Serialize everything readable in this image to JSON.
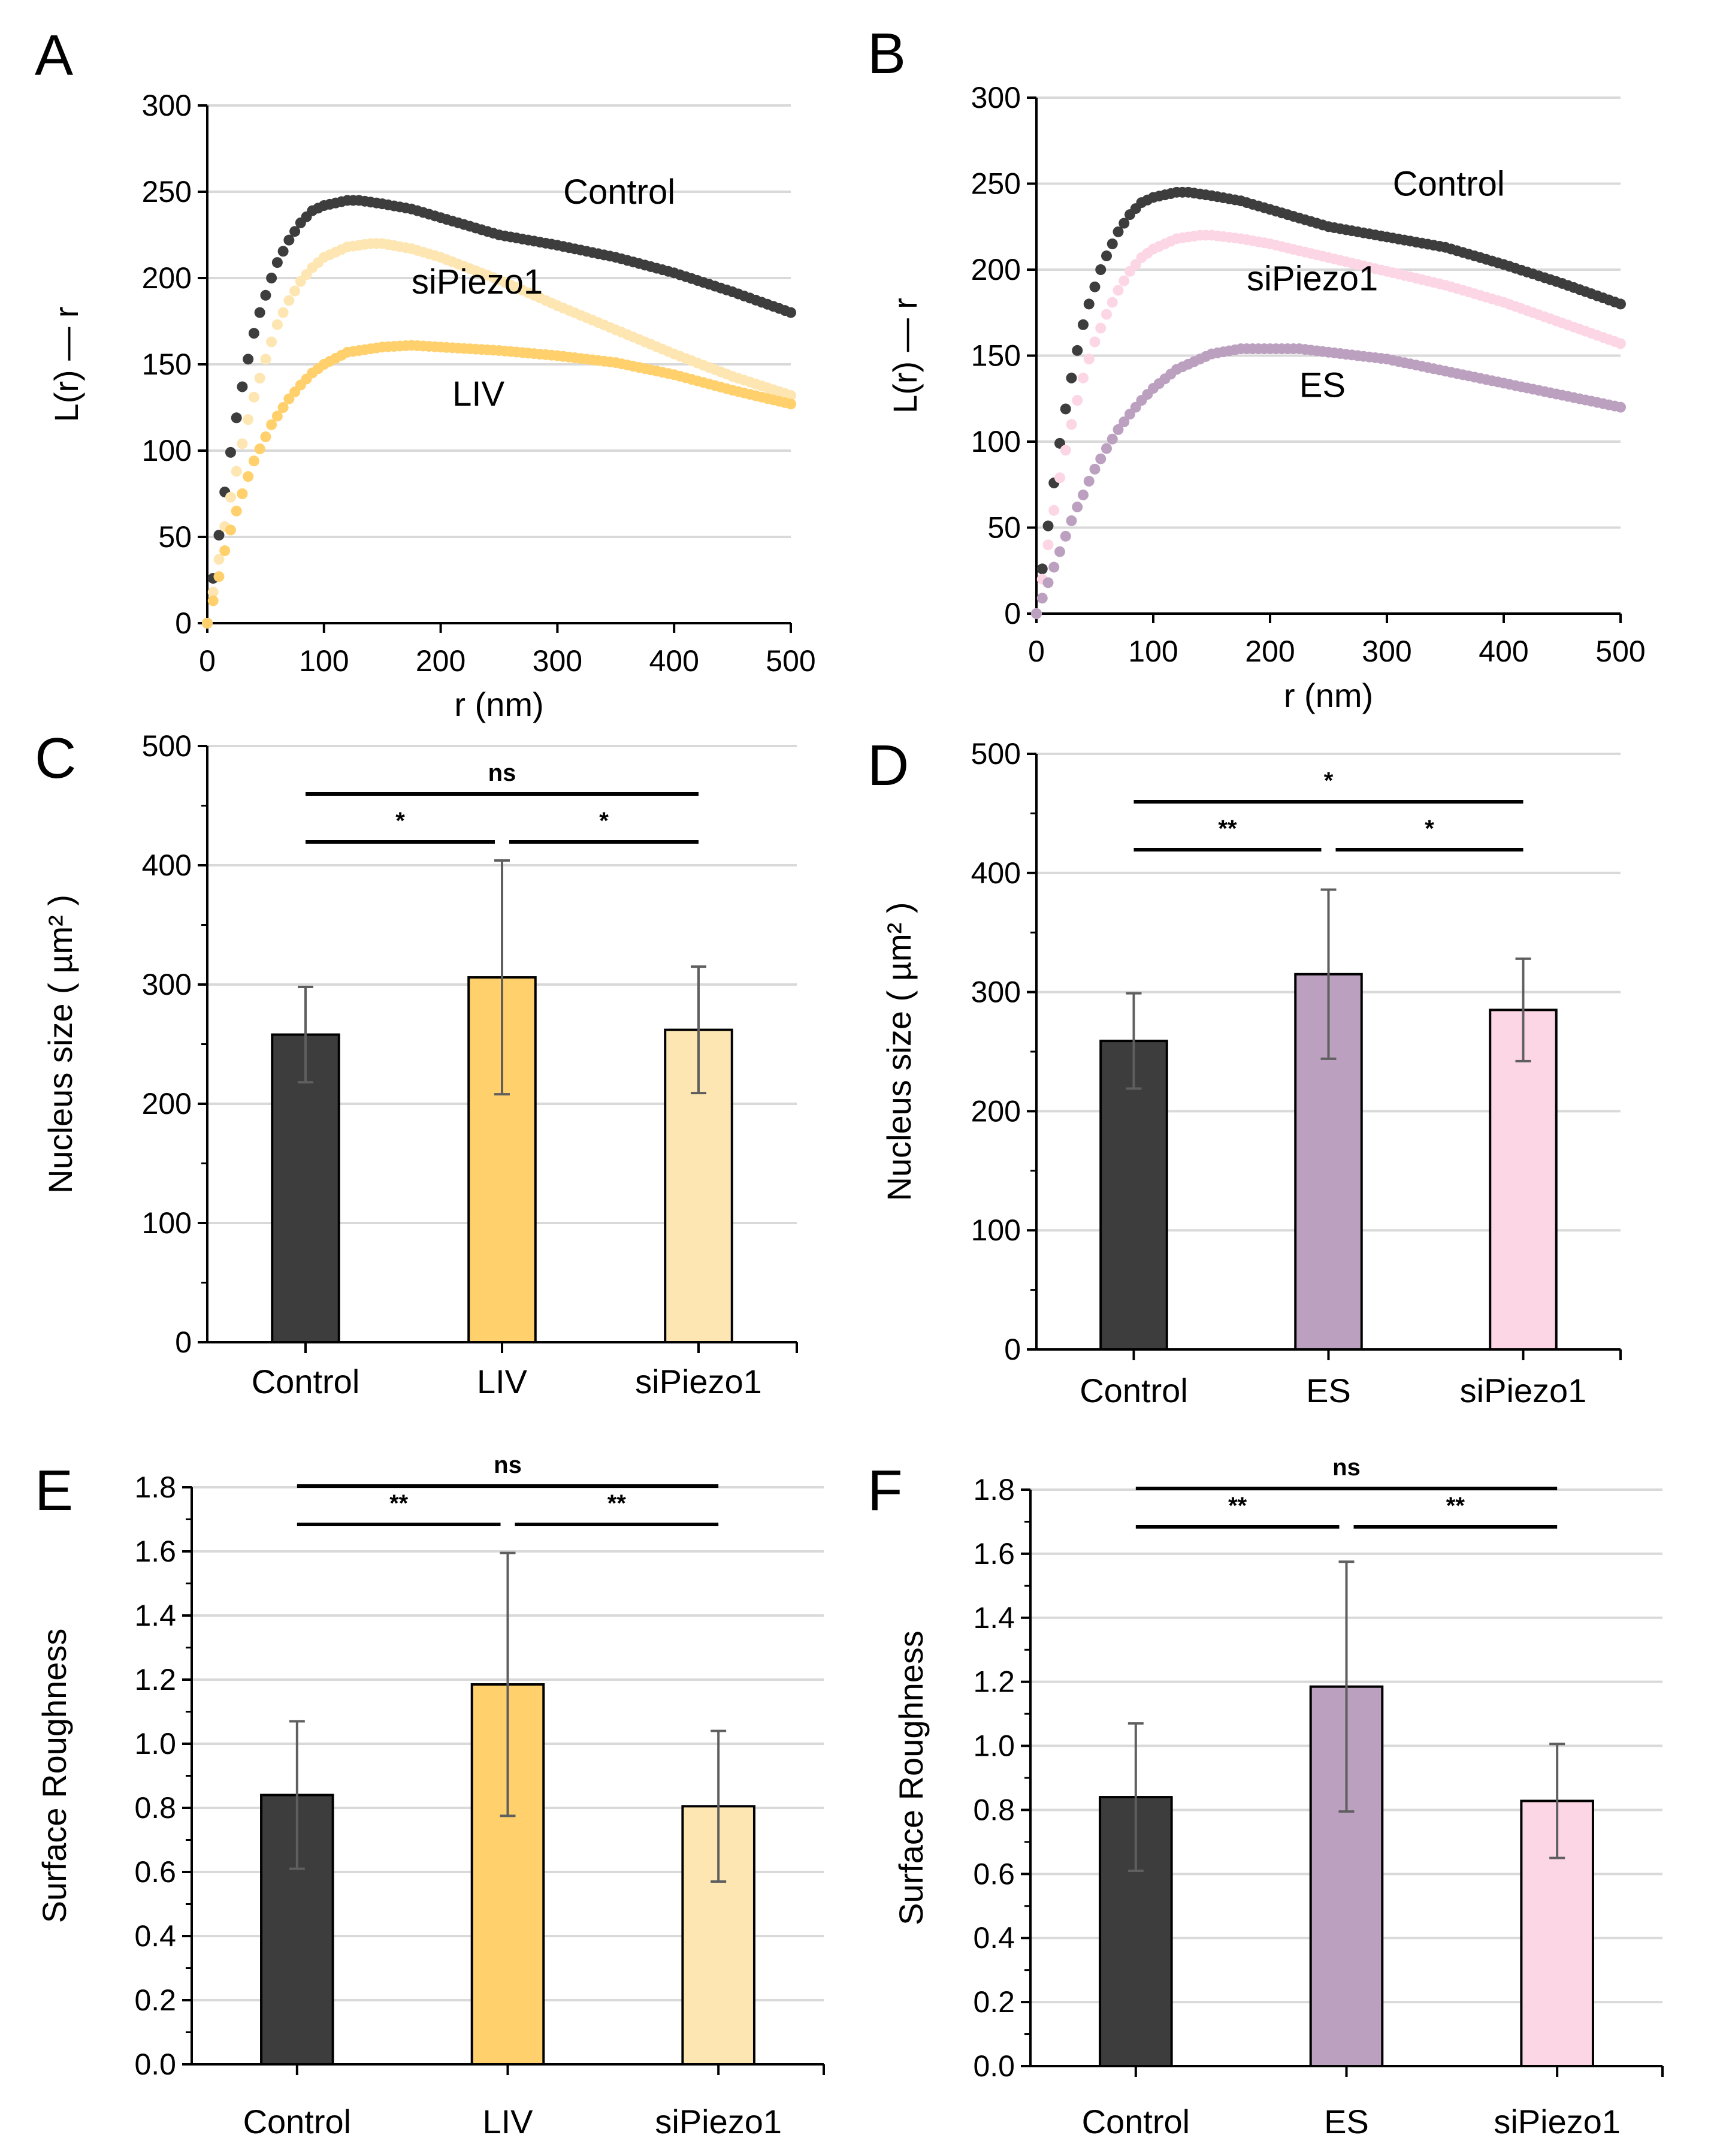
{
  "figure": {
    "panels": [
      "A",
      "B",
      "C",
      "D",
      "E",
      "F"
    ]
  },
  "colors": {
    "control": "#3d3d3d",
    "liv": "#ffd06b",
    "sipiezo1_liv": "#fee6b3",
    "es": "#bba0bf",
    "sipiezo1_es": "#fdd6e5",
    "gridline": "#d9d9d9",
    "errorbar": "#5f5f5f"
  },
  "chart_data": [
    {
      "panel": "A",
      "type": "scatter",
      "title": "",
      "xlabel": "r (nm)",
      "ylabel": "L(r) — r",
      "xlim": [
        0,
        500
      ],
      "ylim": [
        0,
        300
      ],
      "xticks": [
        "0",
        "100",
        "200",
        "300",
        "400",
        "500"
      ],
      "yticks": [
        "0",
        "50",
        "100",
        "150",
        "200",
        "250",
        "300"
      ],
      "grid": true,
      "series": [
        {
          "name": "Control",
          "color_key": "control",
          "x": [
            0,
            5,
            10,
            15,
            20,
            25,
            30,
            35,
            40,
            45,
            50,
            55,
            60,
            70,
            80,
            90,
            100,
            120,
            130,
            150,
            175,
            200,
            250,
            300,
            350,
            400,
            450,
            500
          ],
          "y": [
            0,
            26,
            51,
            76,
            99,
            119,
            137,
            153,
            168,
            180,
            190,
            200,
            209,
            222,
            232,
            239,
            242,
            245,
            245,
            243,
            240,
            235,
            225,
            219,
            212,
            203,
            192,
            180
          ]
        },
        {
          "name": "siPiezo1",
          "color_key": "sipiezo1_liv",
          "x": [
            0,
            5,
            10,
            15,
            20,
            25,
            30,
            35,
            40,
            45,
            50,
            55,
            60,
            70,
            80,
            90,
            100,
            120,
            140,
            150,
            175,
            200,
            250,
            300,
            350,
            400,
            450,
            500
          ],
          "y": [
            0,
            18,
            37,
            56,
            73,
            88,
            104,
            118,
            131,
            142,
            153,
            163,
            173,
            187,
            198,
            206,
            212,
            218,
            220,
            220,
            217,
            212,
            199,
            184,
            170,
            156,
            143,
            132
          ]
        },
        {
          "name": "LIV",
          "color_key": "liv",
          "x": [
            0,
            5,
            10,
            15,
            20,
            25,
            30,
            35,
            40,
            45,
            50,
            55,
            60,
            70,
            80,
            90,
            100,
            120,
            150,
            175,
            200,
            250,
            300,
            350,
            400,
            450,
            500
          ],
          "y": [
            0,
            13,
            27,
            42,
            54,
            65,
            75,
            85,
            94,
            101,
            108,
            115,
            120,
            130,
            138,
            145,
            150,
            157,
            160,
            161,
            160,
            158,
            155,
            151,
            144,
            135,
            127
          ]
        }
      ],
      "annotations": [
        {
          "text": "Control",
          "x": 305,
          "y": 250
        },
        {
          "text": "siPiezo1",
          "x": 175,
          "y": 198
        },
        {
          "text": "LIV",
          "x": 210,
          "y": 133
        }
      ]
    },
    {
      "panel": "B",
      "type": "scatter",
      "title": "",
      "xlabel": "r (nm)",
      "ylabel": "L(r) — r",
      "xlim": [
        0,
        500
      ],
      "ylim": [
        0,
        300
      ],
      "xticks": [
        "0",
        "100",
        "200",
        "300",
        "400",
        "500"
      ],
      "yticks": [
        "0",
        "50",
        "100",
        "150",
        "200",
        "250",
        "300"
      ],
      "grid": true,
      "series": [
        {
          "name": "Control",
          "color_key": "control",
          "x": [
            0,
            5,
            10,
            15,
            20,
            25,
            30,
            35,
            40,
            45,
            50,
            55,
            60,
            70,
            80,
            90,
            100,
            120,
            130,
            150,
            175,
            200,
            250,
            300,
            350,
            400,
            450,
            500
          ],
          "y": [
            0,
            26,
            51,
            76,
            99,
            119,
            137,
            153,
            168,
            180,
            190,
            200,
            208,
            222,
            232,
            239,
            242,
            245,
            245,
            243,
            240,
            235,
            225,
            219,
            213,
            203,
            192,
            180
          ]
        },
        {
          "name": "siPiezo1",
          "color_key": "sipiezo1_es",
          "x": [
            0,
            5,
            10,
            15,
            20,
            25,
            30,
            35,
            40,
            45,
            50,
            55,
            60,
            70,
            80,
            90,
            100,
            120,
            140,
            150,
            175,
            200,
            250,
            300,
            350,
            400,
            450,
            500
          ],
          "y": [
            0,
            20,
            40,
            60,
            79,
            95,
            110,
            124,
            137,
            148,
            158,
            166,
            174,
            188,
            199,
            207,
            212,
            218,
            220,
            220,
            218,
            215,
            207,
            199,
            191,
            181,
            169,
            157
          ]
        },
        {
          "name": "ES",
          "color_key": "es",
          "x": [
            0,
            5,
            10,
            15,
            20,
            25,
            30,
            35,
            40,
            45,
            50,
            55,
            60,
            70,
            80,
            90,
            100,
            120,
            150,
            175,
            200,
            225,
            250,
            300,
            350,
            400,
            450,
            500
          ],
          "y": [
            0,
            9,
            18,
            27,
            36,
            45,
            54,
            62,
            69,
            77,
            84,
            90,
            96,
            107,
            116,
            124,
            131,
            142,
            151,
            154,
            154,
            154,
            152,
            148,
            141,
            134,
            127,
            120
          ]
        }
      ],
      "annotations": [
        {
          "text": "Control",
          "x": 305,
          "y": 250
        },
        {
          "text": "siPiezo1",
          "x": 180,
          "y": 195
        },
        {
          "text": "ES",
          "x": 225,
          "y": 133
        }
      ]
    },
    {
      "panel": "C",
      "type": "bar",
      "title": "",
      "xlabel": "",
      "ylabel": "Nucleus size ( µm² )",
      "ylim": [
        0,
        500
      ],
      "yticks": [
        "0",
        "100",
        "200",
        "300",
        "400",
        "500"
      ],
      "grid": true,
      "categories": [
        "Control",
        "LIV",
        "siPiezo1"
      ],
      "color_keys": [
        "control",
        "liv",
        "sipiezo1_liv"
      ],
      "values": [
        258,
        306,
        262
      ],
      "errors": [
        40,
        98,
        53
      ],
      "significance": [
        {
          "from": 0,
          "to": 2,
          "label": "ns",
          "level": 2
        },
        {
          "from": 0,
          "to": 1,
          "label": "*",
          "level": 1
        },
        {
          "from": 1,
          "to": 2,
          "label": "*",
          "level": 1
        }
      ]
    },
    {
      "panel": "D",
      "type": "bar",
      "title": "",
      "xlabel": "",
      "ylabel": "Nucleus size ( µm² )",
      "ylim": [
        0,
        500
      ],
      "yticks": [
        "0",
        "100",
        "200",
        "300",
        "400",
        "500"
      ],
      "grid": true,
      "categories": [
        "Control",
        "ES",
        "siPiezo1"
      ],
      "color_keys": [
        "control",
        "es",
        "sipiezo1_es"
      ],
      "values": [
        259,
        315,
        285
      ],
      "errors": [
        40,
        71,
        43
      ],
      "significance": [
        {
          "from": 0,
          "to": 2,
          "label": "*",
          "level": 2
        },
        {
          "from": 0,
          "to": 1,
          "label": "**",
          "level": 1
        },
        {
          "from": 1,
          "to": 2,
          "label": "*",
          "level": 1
        }
      ]
    },
    {
      "panel": "E",
      "type": "bar",
      "title": "",
      "xlabel": "",
      "ylabel": "Surface Roughness",
      "ylim": [
        0,
        1.8
      ],
      "yticks": [
        "0.0",
        "0.2",
        "0.4",
        "0.6",
        "0.8",
        "1.0",
        "1.2",
        "1.4",
        "1.6",
        "1.8"
      ],
      "grid": true,
      "categories": [
        "Control",
        "LIV",
        "siPiezo1"
      ],
      "color_keys": [
        "control",
        "liv",
        "sipiezo1_liv"
      ],
      "values": [
        0.84,
        1.185,
        0.805
      ],
      "errors": [
        0.23,
        0.41,
        0.235
      ],
      "significance": [
        {
          "from": 0,
          "to": 2,
          "label": "ns",
          "level": 2
        },
        {
          "from": 0,
          "to": 1,
          "label": "**",
          "level": 1
        },
        {
          "from": 1,
          "to": 2,
          "label": "**",
          "level": 1
        }
      ]
    },
    {
      "panel": "F",
      "type": "bar",
      "title": "",
      "xlabel": "",
      "ylabel": "Surface Roughness",
      "ylim": [
        0,
        1.8
      ],
      "yticks": [
        "0.0",
        "0.2",
        "0.4",
        "0.6",
        "0.8",
        "1.0",
        "1.2",
        "1.4",
        "1.6",
        "1.8"
      ],
      "grid": true,
      "categories": [
        "Control",
        "ES",
        "siPiezo1"
      ],
      "color_keys": [
        "control",
        "es",
        "sipiezo1_es"
      ],
      "values": [
        0.84,
        1.185,
        0.828
      ],
      "errors": [
        0.23,
        0.39,
        0.178
      ],
      "significance": [
        {
          "from": 0,
          "to": 2,
          "label": "ns",
          "level": 2
        },
        {
          "from": 0,
          "to": 1,
          "label": "**",
          "level": 1
        },
        {
          "from": 1,
          "to": 2,
          "label": "**",
          "level": 1
        }
      ]
    }
  ]
}
